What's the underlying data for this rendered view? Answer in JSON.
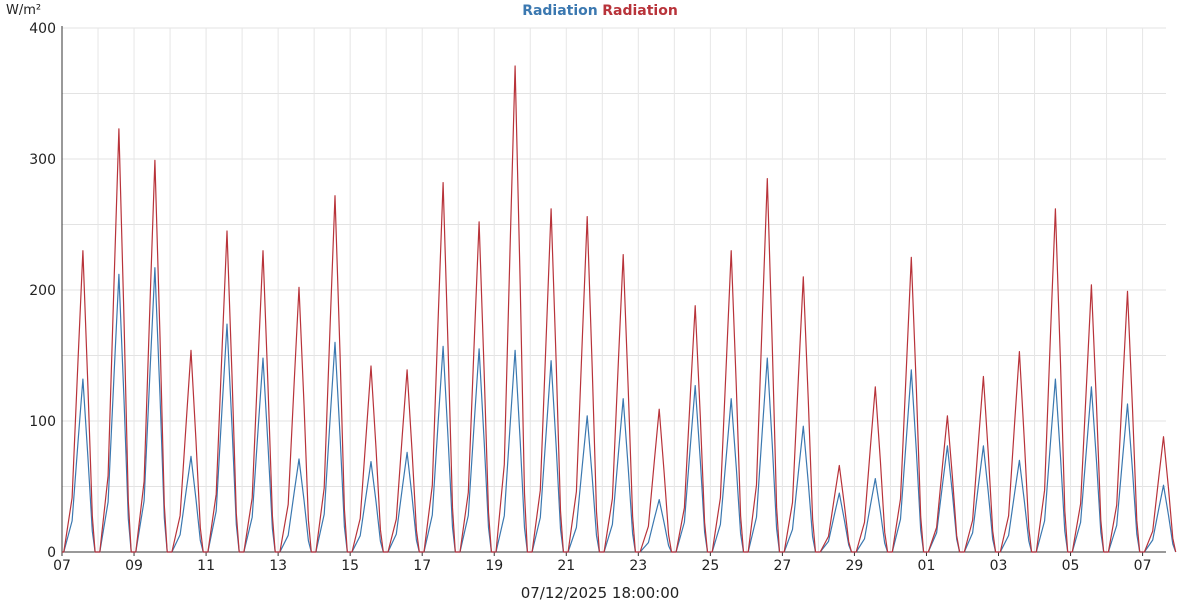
{
  "chart_data": {
    "type": "line",
    "y_unit": "W/m²",
    "ylim": [
      0,
      400
    ],
    "y_ticks": [
      0,
      100,
      200,
      300,
      400
    ],
    "x_start_label": "07",
    "x_tick_labels": [
      "07",
      "09",
      "11",
      "13",
      "15",
      "17",
      "19",
      "21",
      "23",
      "25",
      "27",
      "29",
      "01",
      "03",
      "05",
      "07"
    ],
    "footer_timestamp": "07/12/2025 18:00:00",
    "grid": true,
    "legend_position": "top-center",
    "series": [
      {
        "name": "Radiation",
        "color": "#3b78b0",
        "peaks": [
          132,
          212,
          217,
          73,
          174,
          148,
          71,
          160,
          69,
          76,
          157,
          155,
          154,
          146,
          104,
          117,
          40,
          127,
          117,
          148,
          96,
          45,
          56,
          139,
          81,
          81,
          70,
          132,
          126,
          113,
          51
        ]
      },
      {
        "name": "Radiation",
        "color": "#b8333a",
        "peaks": [
          230,
          323,
          299,
          154,
          245,
          230,
          202,
          272,
          142,
          139,
          282,
          252,
          371,
          262,
          256,
          227,
          109,
          188,
          230,
          285,
          210,
          66,
          126,
          225,
          104,
          134,
          153,
          262,
          204,
          199,
          88
        ]
      }
    ]
  }
}
